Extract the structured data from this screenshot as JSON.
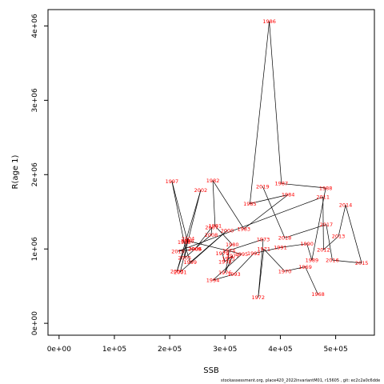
{
  "chart_data": {
    "type": "scatter",
    "connected_path": true,
    "xlabel": "SSB",
    "ylabel": "R(age 1)",
    "xlim": [
      -20000,
      570000
    ],
    "ylim": [
      -160000,
      4220000
    ],
    "x_ticks": [
      {
        "value": 0,
        "label": "0e+00"
      },
      {
        "value": 100000,
        "label": "1e+05"
      },
      {
        "value": 200000,
        "label": "2e+05"
      },
      {
        "value": 300000,
        "label": "3e+05"
      },
      {
        "value": 400000,
        "label": "4e+05"
      },
      {
        "value": 500000,
        "label": "5e+05"
      }
    ],
    "y_ticks": [
      {
        "value": 0,
        "label": "0e+00"
      },
      {
        "value": 1000000,
        "label": "1e+06"
      },
      {
        "value": 2000000,
        "label": "2e+06"
      },
      {
        "value": 3000000,
        "label": "3e+06"
      },
      {
        "value": 4000000,
        "label": "4e+06"
      }
    ],
    "point_color": "#ff0000",
    "line_color": "#000000",
    "points": [
      {
        "year": "1968",
        "x": 468000,
        "y": 390000
      },
      {
        "year": "1969",
        "x": 445000,
        "y": 760000
      },
      {
        "year": "1970",
        "x": 408000,
        "y": 700000
      },
      {
        "year": "1971",
        "x": 370000,
        "y": 1000000
      },
      {
        "year": "1972",
        "x": 360000,
        "y": 350000
      },
      {
        "year": "1973",
        "x": 369000,
        "y": 1130000
      },
      {
        "year": "1974",
        "x": 307000,
        "y": 980000
      },
      {
        "year": "1975",
        "x": 306000,
        "y": 870000
      },
      {
        "year": "1976",
        "x": 300000,
        "y": 680000
      },
      {
        "year": "1977",
        "x": 314000,
        "y": 910000
      },
      {
        "year": "1978",
        "x": 300000,
        "y": 830000
      },
      {
        "year": "1979",
        "x": 295000,
        "y": 940000
      },
      {
        "year": "1980",
        "x": 313000,
        "y": 1060000
      },
      {
        "year": "1981",
        "x": 282000,
        "y": 1310000
      },
      {
        "year": "1982",
        "x": 278000,
        "y": 1920000
      },
      {
        "year": "1983",
        "x": 334000,
        "y": 1270000
      },
      {
        "year": "1984",
        "x": 414000,
        "y": 1730000
      },
      {
        "year": "1985",
        "x": 345000,
        "y": 1610000
      },
      {
        "year": "1986",
        "x": 380000,
        "y": 4060000
      },
      {
        "year": "1987",
        "x": 402000,
        "y": 1880000
      },
      {
        "year": "1988",
        "x": 482000,
        "y": 1820000
      },
      {
        "year": "1989",
        "x": 457000,
        "y": 850000
      },
      {
        "year": "1990",
        "x": 448000,
        "y": 1070000
      },
      {
        "year": "1991",
        "x": 400000,
        "y": 1020000
      },
      {
        "year": "1992",
        "x": 352000,
        "y": 940000
      },
      {
        "year": "1993",
        "x": 316000,
        "y": 660000
      },
      {
        "year": "1994",
        "x": 278000,
        "y": 580000
      },
      {
        "year": "1995",
        "x": 330000,
        "y": 930000
      },
      {
        "year": "1996",
        "x": 232000,
        "y": 1110000
      },
      {
        "year": "1997",
        "x": 204000,
        "y": 1910000
      },
      {
        "year": "1998",
        "x": 226000,
        "y": 1090000
      },
      {
        "year": "1999",
        "x": 237000,
        "y": 820000
      },
      {
        "year": "2000",
        "x": 304000,
        "y": 1250000
      },
      {
        "year": "2001",
        "x": 219000,
        "y": 690000
      },
      {
        "year": "2002",
        "x": 256000,
        "y": 1790000
      },
      {
        "year": "2003",
        "x": 213000,
        "y": 700000
      },
      {
        "year": "2004",
        "x": 233000,
        "y": 1140000
      },
      {
        "year": "2005",
        "x": 227000,
        "y": 880000
      },
      {
        "year": "2006",
        "x": 246000,
        "y": 1000000
      },
      {
        "year": "2007",
        "x": 276000,
        "y": 1290000
      },
      {
        "year": "2008",
        "x": 275000,
        "y": 1190000
      },
      {
        "year": "2009",
        "x": 245000,
        "y": 1000000
      },
      {
        "year": "2010",
        "x": 215000,
        "y": 970000
      },
      {
        "year": "2011",
        "x": 477000,
        "y": 1700000
      },
      {
        "year": "2012",
        "x": 478000,
        "y": 990000
      },
      {
        "year": "2013",
        "x": 505000,
        "y": 1170000
      },
      {
        "year": "2014",
        "x": 518000,
        "y": 1590000
      },
      {
        "year": "2015",
        "x": 547000,
        "y": 810000
      },
      {
        "year": "2016",
        "x": 494000,
        "y": 850000
      },
      {
        "year": "2017",
        "x": 483000,
        "y": 1330000
      },
      {
        "year": "2018",
        "x": 408000,
        "y": 1150000
      },
      {
        "year": "2019",
        "x": 368000,
        "y": 1840000
      }
    ]
  },
  "footer": "stockassessment.org, place420_2022invariantM01, r15605 , git: ec2c2a0c6dde"
}
